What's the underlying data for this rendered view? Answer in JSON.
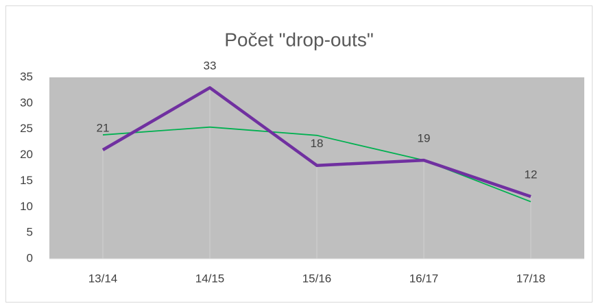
{
  "chart_data": {
    "type": "line",
    "title": "Počet \"drop-outs\"",
    "categories": [
      "13/14",
      "14/15",
      "15/16",
      "16/17",
      "17/18"
    ],
    "series": [
      {
        "color": "#7030a0",
        "values": [
          21,
          33,
          18,
          19,
          12
        ]
      },
      {
        "color": "#00b050",
        "values": [
          23.9,
          25.4,
          23.8,
          19,
          11
        ]
      }
    ],
    "ylim": [
      0,
      35
    ],
    "yticks": [
      0,
      5,
      10,
      15,
      20,
      25,
      30,
      35
    ],
    "plot_background": "#bfbfbf",
    "grid": false
  }
}
